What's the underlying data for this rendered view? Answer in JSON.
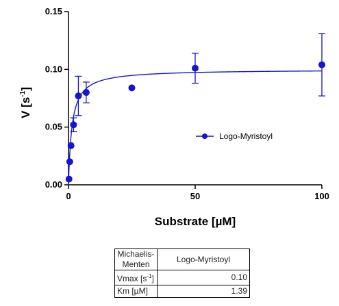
{
  "chart_data": {
    "type": "scatter",
    "xlabel": "Substrate [µM]",
    "ylabel_main": "V [s",
    "ylabel_exp": "-1",
    "ylabel_close": "]",
    "xlim": [
      0,
      100
    ],
    "ylim": [
      0,
      0.15
    ],
    "x_ticks": [
      0,
      50,
      100
    ],
    "x_tick_labels": [
      "0",
      "50",
      "100"
    ],
    "y_ticks": [
      0,
      0.05,
      0.1,
      0.15
    ],
    "y_tick_labels": [
      "0.00",
      "0.05",
      "0.10",
      "0.15"
    ],
    "grid": false,
    "legend_position": "center-right",
    "marker_color": "#1414d2",
    "series": [
      {
        "name": "Logo-Myristoyl",
        "points": [
          {
            "x": 0.2,
            "y": 0.005,
            "err": null
          },
          {
            "x": 0.5,
            "y": 0.02,
            "err": null
          },
          {
            "x": 1.0,
            "y": 0.034,
            "err": null
          },
          {
            "x": 2.0,
            "y": 0.052,
            "err": 0.006
          },
          {
            "x": 3.9,
            "y": 0.077,
            "err": 0.017
          },
          {
            "x": 7.0,
            "y": 0.08,
            "err": 0.009
          },
          {
            "x": 25.0,
            "y": 0.084,
            "err": null
          },
          {
            "x": 50.0,
            "y": 0.101,
            "err": 0.013
          },
          {
            "x": 100.0,
            "y": 0.104,
            "err": 0.027
          }
        ],
        "fit": {
          "model": "Michaelis-Menten",
          "Vmax": 0.1,
          "Km": 1.39
        }
      }
    ]
  },
  "results_table": {
    "header_name_line1": "Michaelis-",
    "header_name_line2": "Menten",
    "header_series": "Logo-Myristoyl",
    "rows": [
      {
        "label": "Vmax",
        "unit_open": " [s",
        "unit_exp": "-1",
        "unit_close": "]",
        "value": "0.10"
      },
      {
        "label": "Km",
        "unit_open": " [µM]",
        "unit_exp": "",
        "unit_close": "",
        "value": "1.39"
      }
    ]
  }
}
